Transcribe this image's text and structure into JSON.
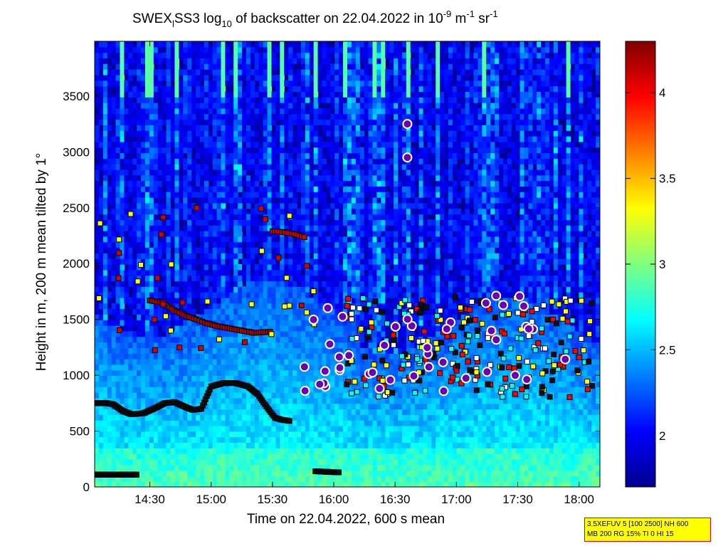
{
  "chart_data": {
    "type": "heatmap",
    "title_parts": {
      "prefix": "SWEX",
      "sub": "l",
      "instrument": "SS3 log",
      "log_base": "10",
      "middle": " of backscatter on 22.04.2022 in 10",
      "exp1": "-9",
      "unit1": " m",
      "exp2": "-1",
      "unit2": " sr",
      "exp3": "-1"
    },
    "xlabel": "Time on 22.04.2022, 600 s mean",
    "ylabel": "Height in m, 200 m mean tilted by 1°",
    "x_ticks": [
      "14:30",
      "15:00",
      "15:30",
      "16:00",
      "16:30",
      "17:00",
      "17:30",
      "18:00"
    ],
    "x_tick_hours": [
      14.5,
      15.0,
      15.5,
      16.0,
      16.5,
      17.0,
      17.5,
      18.0
    ],
    "xlim_hours": [
      14.05,
      18.17
    ],
    "y_ticks": [
      0,
      500,
      1000,
      1500,
      2000,
      2500,
      3000,
      3500
    ],
    "ylim": [
      0,
      3990
    ],
    "colorbar": {
      "ticks": [
        2,
        2.5,
        3,
        3.5,
        4
      ],
      "tick_labels": [
        "2",
        "2.5",
        "3",
        "3.5",
        "4"
      ],
      "range": [
        1.7,
        4.3
      ],
      "colormap": "jet"
    },
    "layers_description_colors": {
      "boundary_marker": "#000000",
      "cloud_marker_white": "#ffffff",
      "cloud_marker_red": "#d40000",
      "precip_marker": "#c000c0"
    },
    "mixing_layer": [
      [
        14.05,
        750
      ],
      [
        14.15,
        750
      ],
      [
        14.2,
        740
      ],
      [
        14.28,
        680
      ],
      [
        14.35,
        650
      ],
      [
        14.45,
        660
      ],
      [
        14.55,
        710
      ],
      [
        14.62,
        750
      ],
      [
        14.7,
        760
      ],
      [
        14.78,
        720
      ],
      [
        14.85,
        690
      ],
      [
        14.92,
        700
      ],
      [
        15.0,
        900
      ],
      [
        15.1,
        930
      ],
      [
        15.2,
        930
      ],
      [
        15.3,
        900
      ],
      [
        15.38,
        830
      ],
      [
        15.45,
        720
      ],
      [
        15.52,
        620
      ],
      [
        15.58,
        600
      ],
      [
        15.65,
        590
      ]
    ],
    "surface_layer": [
      [
        14.05,
        110
      ],
      [
        14.4,
        110
      ]
    ],
    "surface_layer_2": [
      [
        15.85,
        140
      ],
      [
        16.05,
        130
      ]
    ],
    "cloud_base_1": [
      [
        14.5,
        1670
      ],
      [
        14.6,
        1650
      ],
      [
        14.7,
        1580
      ],
      [
        14.8,
        1530
      ],
      [
        14.88,
        1500
      ],
      [
        14.95,
        1470
      ],
      [
        15.05,
        1440
      ],
      [
        15.15,
        1420
      ],
      [
        15.25,
        1400
      ],
      [
        15.35,
        1380
      ],
      [
        15.5,
        1390
      ]
    ],
    "upper_aerosol_top": [
      [
        15.5,
        2290
      ],
      [
        15.6,
        2280
      ],
      [
        15.7,
        2260
      ],
      [
        15.78,
        2230
      ]
    ],
    "param_box": {
      "line1": "3.5XEFUV 5 [100 2500] NH 600",
      "line2": "MB 200 RG 15% TI 0 HI 15"
    }
  }
}
